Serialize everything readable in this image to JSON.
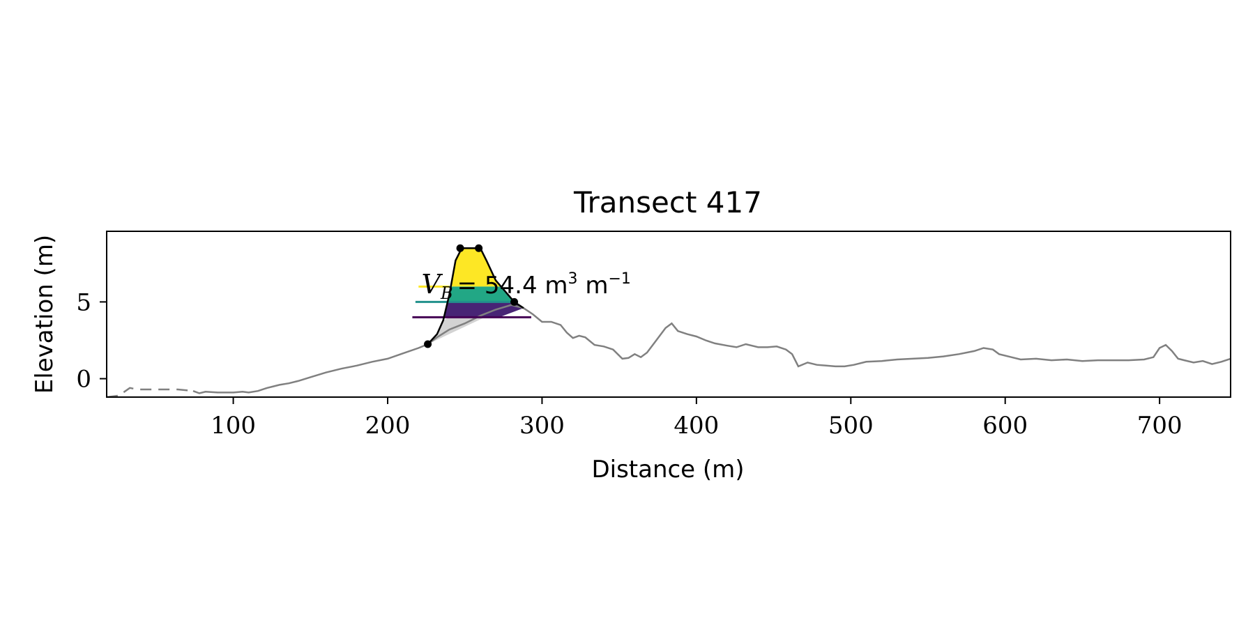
{
  "chart_data": {
    "type": "line",
    "title": "Transect 417",
    "xlabel": "Distance (m)",
    "ylabel": "Elevation (m)",
    "xlim": [
      18,
      746
    ],
    "ylim": [
      -1.2,
      9.6
    ],
    "xticks": [
      100,
      200,
      300,
      400,
      500,
      600,
      700
    ],
    "yticks": [
      0,
      5
    ],
    "xtick_labels": [
      "100",
      "200",
      "300",
      "400",
      "500",
      "600",
      "700"
    ],
    "ytick_labels": [
      "0",
      "5"
    ],
    "grid": false,
    "profile_color": "#808080",
    "profile_missing": [
      [
        18,
        -1.2
      ],
      [
        26,
        -1.1
      ],
      [
        33,
        -0.6
      ],
      [
        38,
        -0.7
      ],
      [
        44,
        -0.7
      ],
      [
        64,
        -0.7
      ],
      [
        74,
        -0.8
      ]
    ],
    "profile": [
      [
        74,
        -0.8
      ],
      [
        78,
        -0.95
      ],
      [
        82,
        -0.85
      ],
      [
        90,
        -0.9
      ],
      [
        100,
        -0.9
      ],
      [
        106,
        -0.85
      ],
      [
        110,
        -0.9
      ],
      [
        116,
        -0.8
      ],
      [
        122,
        -0.6
      ],
      [
        126,
        -0.5
      ],
      [
        130,
        -0.4
      ],
      [
        136,
        -0.3
      ],
      [
        142,
        -0.15
      ],
      [
        150,
        0.1
      ],
      [
        160,
        0.4
      ],
      [
        170,
        0.65
      ],
      [
        180,
        0.85
      ],
      [
        190,
        1.1
      ],
      [
        200,
        1.3
      ],
      [
        210,
        1.65
      ],
      [
        220,
        2.0
      ],
      [
        226,
        2.25
      ],
      [
        232,
        2.7
      ],
      [
        240,
        3.2
      ],
      [
        250,
        3.6
      ],
      [
        260,
        4.1
      ],
      [
        270,
        4.5
      ],
      [
        280,
        4.8
      ],
      [
        288,
        4.6
      ],
      [
        294,
        4.2
      ],
      [
        300,
        3.7
      ],
      [
        306,
        3.7
      ],
      [
        312,
        3.5
      ],
      [
        316,
        3.0
      ],
      [
        320,
        2.65
      ],
      [
        324,
        2.8
      ],
      [
        328,
        2.7
      ],
      [
        334,
        2.2
      ],
      [
        340,
        2.1
      ],
      [
        346,
        1.9
      ],
      [
        352,
        1.3
      ],
      [
        356,
        1.35
      ],
      [
        360,
        1.6
      ],
      [
        364,
        1.4
      ],
      [
        368,
        1.7
      ],
      [
        374,
        2.5
      ],
      [
        380,
        3.3
      ],
      [
        384,
        3.6
      ],
      [
        388,
        3.1
      ],
      [
        394,
        2.9
      ],
      [
        400,
        2.75
      ],
      [
        406,
        2.5
      ],
      [
        412,
        2.3
      ],
      [
        420,
        2.15
      ],
      [
        426,
        2.05
      ],
      [
        432,
        2.25
      ],
      [
        440,
        2.05
      ],
      [
        446,
        2.05
      ],
      [
        452,
        2.1
      ],
      [
        458,
        1.9
      ],
      [
        462,
        1.6
      ],
      [
        466,
        0.8
      ],
      [
        472,
        1.05
      ],
      [
        478,
        0.9
      ],
      [
        484,
        0.85
      ],
      [
        490,
        0.8
      ],
      [
        496,
        0.8
      ],
      [
        502,
        0.9
      ],
      [
        510,
        1.1
      ],
      [
        520,
        1.15
      ],
      [
        530,
        1.25
      ],
      [
        540,
        1.3
      ],
      [
        550,
        1.35
      ],
      [
        560,
        1.45
      ],
      [
        570,
        1.6
      ],
      [
        580,
        1.8
      ],
      [
        586,
        2.0
      ],
      [
        592,
        1.9
      ],
      [
        596,
        1.6
      ],
      [
        604,
        1.4
      ],
      [
        610,
        1.25
      ],
      [
        620,
        1.3
      ],
      [
        630,
        1.2
      ],
      [
        640,
        1.25
      ],
      [
        650,
        1.15
      ],
      [
        660,
        1.2
      ],
      [
        670,
        1.2
      ],
      [
        680,
        1.2
      ],
      [
        690,
        1.25
      ],
      [
        696,
        1.4
      ],
      [
        700,
        2.0
      ],
      [
        704,
        2.2
      ],
      [
        708,
        1.8
      ],
      [
        712,
        1.3
      ],
      [
        716,
        1.2
      ],
      [
        722,
        1.05
      ],
      [
        728,
        1.15
      ],
      [
        734,
        0.95
      ],
      [
        740,
        1.1
      ],
      [
        746,
        1.3
      ]
    ],
    "dune_profile": [
      [
        226,
        2.25
      ],
      [
        232,
        2.9
      ],
      [
        236,
        3.8
      ],
      [
        240,
        5.5
      ],
      [
        244,
        7.7
      ],
      [
        248,
        8.5
      ],
      [
        252,
        8.5
      ],
      [
        256,
        8.5
      ],
      [
        260,
        8.5
      ],
      [
        264,
        7.7
      ],
      [
        270,
        6.4
      ],
      [
        276,
        5.7
      ],
      [
        282,
        5.0
      ],
      [
        288,
        4.6
      ]
    ],
    "key_points": [
      [
        226,
        2.25
      ],
      [
        247,
        8.5
      ],
      [
        259,
        8.5
      ],
      [
        282,
        5.0
      ]
    ],
    "toe_baseline": [
      [
        226,
        2.25
      ],
      [
        263,
        4.0
      ]
    ],
    "level_lines": [
      {
        "y": 6.0,
        "x0": 220,
        "x1": 240,
        "color": "#fde725"
      },
      {
        "y": 5.0,
        "x0": 218,
        "x1": 282,
        "color": "#21918c"
      },
      {
        "y": 4.0,
        "x0": 216,
        "x1": 293,
        "color": "#440154"
      }
    ],
    "fill_bands": [
      {
        "from": 6.0,
        "to": 8.5,
        "color": "#fde725"
      },
      {
        "from": 5.0,
        "to": 6.0,
        "color": "#22a785"
      },
      {
        "from": 4.0,
        "to": 5.0,
        "color": "#482475"
      }
    ],
    "base_fill_color": "#d3d3d3",
    "annotation": {
      "x": 221,
      "y": 6.2,
      "symbol": "V",
      "subscript": "B",
      "value": "= 54.4 m",
      "superscript": "3",
      "unit": " m",
      "unit_superscript": "−1"
    }
  }
}
